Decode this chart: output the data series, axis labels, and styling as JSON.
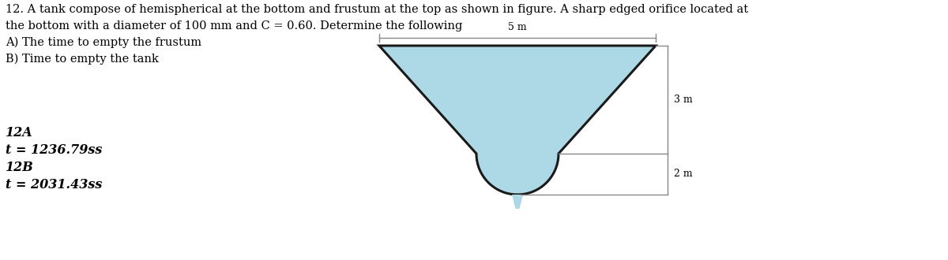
{
  "title_line1": "12. A tank compose of hemispherical at the bottom and frustum at the top as shown in figure. A sharp edged orifice located at",
  "title_line2": "the bottom with a diameter of 100 mm and C = 0.60. Determine the following",
  "title_line3": "A) The time to empty the frustum",
  "title_line4": "B) Time to empty the tank",
  "answer_line1": "12A",
  "answer_line2": "t = 1236.79ss",
  "answer_line3": "12B",
  "answer_line4": "t = 2031.43ss",
  "dim_5m": "5 m",
  "dim_3m": "3 m",
  "dim_2m": "2 m",
  "fill_color": "#add8e6",
  "outline_color": "#1a1a1a",
  "bg_color": "#ffffff",
  "text_color": "#000000",
  "dim_line_color": "#888888",
  "title_fontsize": 10.5,
  "answer_fontsize": 11.5,
  "dim_fontsize": 9,
  "fig_width": 12.0,
  "fig_height": 3.3
}
